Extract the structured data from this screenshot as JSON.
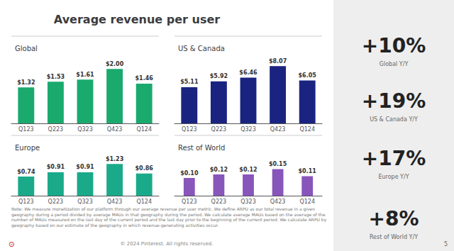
{
  "title": "Average revenue per user",
  "annotations": [
    "+10%",
    "Global Y/Y",
    "+19%",
    "US & Canada Y/Y",
    "+17%",
    "Europe Y/Y",
    "+8%",
    "Rest of World Y/Y",
    "Note: We measure monetization of our platform through our average revenue per user metric. We define ARPU as our total revenue in a given geography during a period divided by average MAUs in that geography during the period. We calculate average MAUs based on the average of the number of MAUs measured on the last day of the current period and the last day prior to the beginning of the current period. We calculate ARPU by geography based on our estimate of the geography in which revenue-generating activities occur.",
    "⊙",
    "© 2024 Pinterest. All rights reserved.",
    "5"
  ],
  "chart_data": [
    {
      "type": "bar",
      "title": "Global",
      "categories": [
        "Q123",
        "Q223",
        "Q323",
        "Q423",
        "Q124"
      ],
      "values": [
        1.32,
        1.53,
        1.61,
        2.0,
        1.46
      ],
      "value_labels": [
        "$1.32",
        "$1.53",
        "$1.61",
        "$2.00",
        "$1.46"
      ],
      "color": "#1aaa6e",
      "ylim": [
        0,
        2.55
      ],
      "grid": false,
      "data_labels": true,
      "tick_labels": "x"
    },
    {
      "type": "bar",
      "title": "US & Canada",
      "categories": [
        "Q123",
        "Q223",
        "Q323",
        "Q423",
        "Q124"
      ],
      "values": [
        5.11,
        5.92,
        6.46,
        8.07,
        6.05
      ],
      "value_labels": [
        "$5.11",
        "$5.92",
        "$6.46",
        "$8.07",
        "$6.05"
      ],
      "color": "#1a2480",
      "ylim": [
        0,
        9.8
      ],
      "grid": false,
      "data_labels": true,
      "tick_labels": "x"
    },
    {
      "type": "bar",
      "title": "Europe",
      "categories": [
        "Q123",
        "Q223",
        "Q323",
        "Q423",
        "Q124"
      ],
      "values": [
        0.74,
        0.91,
        0.91,
        1.23,
        0.86
      ],
      "value_labels": [
        "$0.74",
        "$0.91",
        "$0.91",
        "$1.23",
        "$0.86"
      ],
      "color": "#1aaa8a",
      "ylim": [
        0,
        1.65
      ],
      "grid": false,
      "data_labels": true,
      "tick_labels": "x"
    },
    {
      "type": "bar",
      "title": "Rest of World",
      "categories": [
        "Q123",
        "Q223",
        "Q323",
        "Q423",
        "Q124"
      ],
      "values": [
        0.1,
        0.12,
        0.12,
        0.15,
        0.11
      ],
      "value_labels": [
        "$0.10",
        "$0.12",
        "$0.12",
        "$0.15",
        "$0.11"
      ],
      "color": "#8855bb",
      "ylim": [
        0,
        0.24
      ],
      "grid": false,
      "data_labels": true,
      "tick_labels": "x"
    }
  ]
}
